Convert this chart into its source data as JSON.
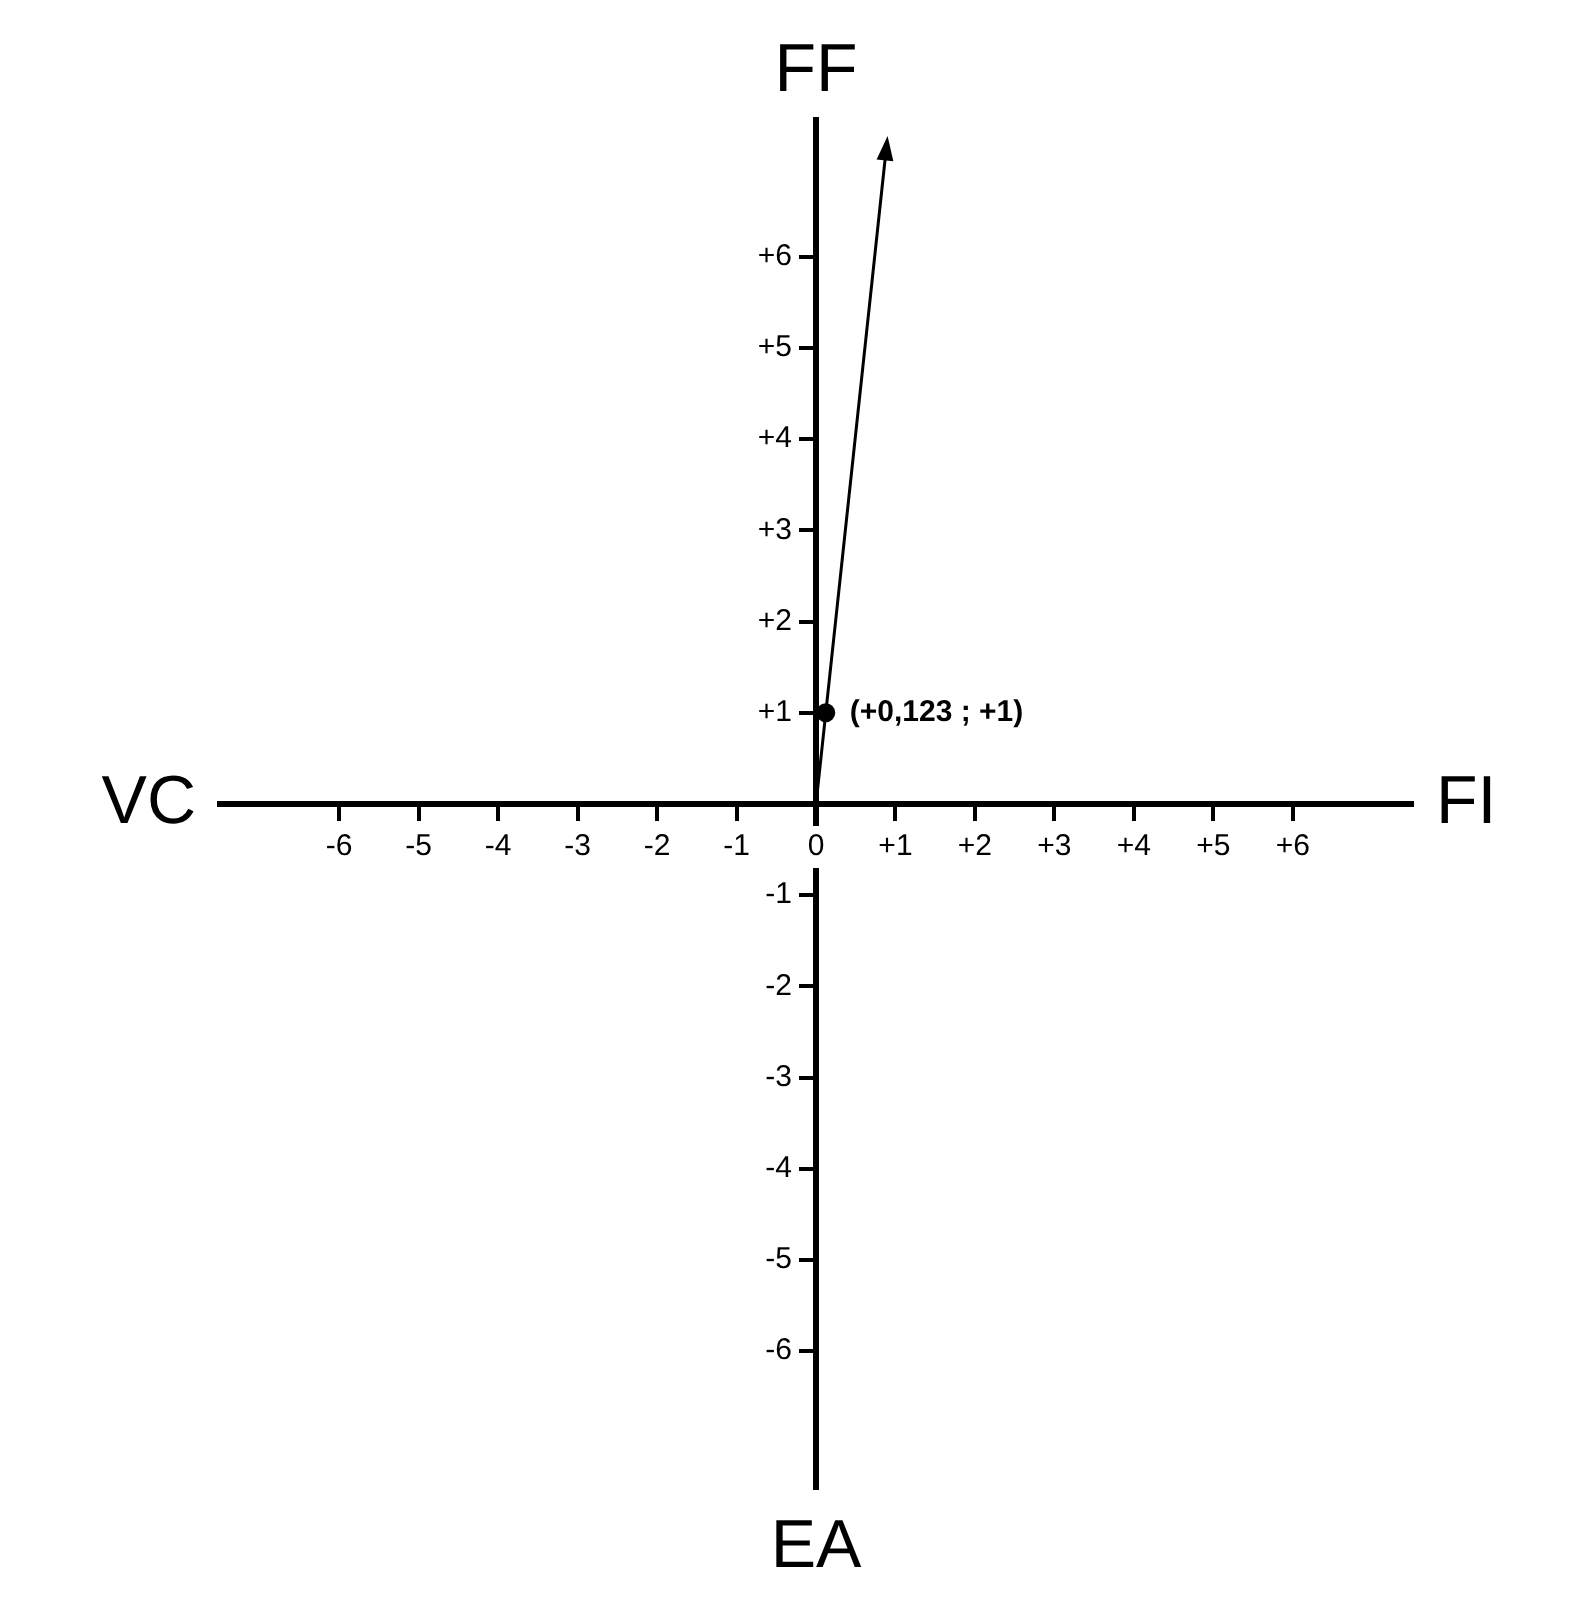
{
  "chart_data": {
    "type": "scatter",
    "xlabel": "FI",
    "ylabel": "FF",
    "annotations": [
      "VC",
      "EA"
    ],
    "series": [
      {
        "color": "#000000",
        "x": [
          0.123
        ],
        "values": [
          1
        ],
        "value_labels": [
          "(+0,123 ; +1)"
        ],
        "marker": "circle"
      }
    ],
    "xlim": [
      -7.5,
      7.5
    ],
    "ylim": [
      -7.5,
      7.5
    ],
    "xticks": [
      {
        "value": -6,
        "label": "-6"
      },
      {
        "value": -5,
        "label": "-5"
      },
      {
        "value": -4,
        "label": "-4"
      },
      {
        "value": -3,
        "label": "-3"
      },
      {
        "value": -2,
        "label": "-2"
      },
      {
        "value": -1,
        "label": "-1"
      },
      {
        "value": 0,
        "label": "0"
      },
      {
        "value": 1,
        "label": "+1"
      },
      {
        "value": 2,
        "label": "+2"
      },
      {
        "value": 3,
        "label": "+3"
      },
      {
        "value": 4,
        "label": "+4"
      },
      {
        "value": 5,
        "label": "+5"
      },
      {
        "value": 6,
        "label": "+6"
      }
    ],
    "yticks": [
      {
        "value": -6,
        "label": "-6"
      },
      {
        "value": -5,
        "label": "-5"
      },
      {
        "value": -4,
        "label": "-4"
      },
      {
        "value": -3,
        "label": "-3"
      },
      {
        "value": -2,
        "label": "-2"
      },
      {
        "value": -1,
        "label": "-1"
      },
      {
        "value": 1,
        "label": "+1"
      },
      {
        "value": 2,
        "label": "+2"
      },
      {
        "value": 3,
        "label": "+3"
      },
      {
        "value": 4,
        "label": "+4"
      },
      {
        "value": 5,
        "label": "+5"
      },
      {
        "value": 6,
        "label": "+6"
      }
    ],
    "grid": false,
    "legend": false
  }
}
